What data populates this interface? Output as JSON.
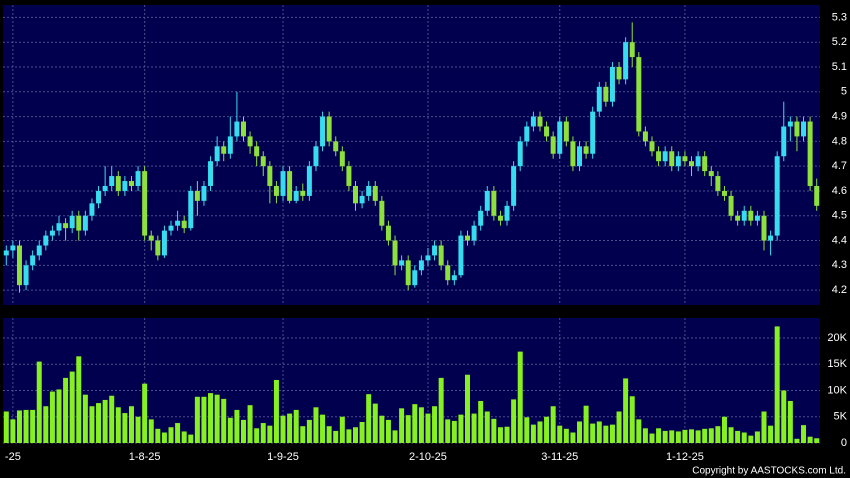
{
  "chart_data": [
    {
      "type": "candlestick",
      "up_color": "#38dcef",
      "down_color": "#8ee03c",
      "xlim": [
        -0.5,
        123.5
      ],
      "ylim": [
        4.14,
        5.35
      ],
      "yticks": [
        4.2,
        4.3,
        4.4,
        4.5,
        4.6,
        4.7,
        4.8,
        4.9,
        5,
        5.1,
        5.2,
        5.3
      ],
      "grid": true,
      "open": [
        4.34,
        4.36,
        4.38,
        4.22,
        4.3,
        4.34,
        4.38,
        4.42,
        4.44,
        4.47,
        4.45,
        4.5,
        4.44,
        4.5,
        4.55,
        4.6,
        4.62,
        4.66,
        4.6,
        4.64,
        4.62,
        4.68,
        4.42,
        4.4,
        4.34,
        4.44,
        4.46,
        4.48,
        4.45,
        4.6,
        4.56,
        4.62,
        4.72,
        4.78,
        4.75,
        4.82,
        4.88,
        4.82,
        4.78,
        4.74,
        4.7,
        4.62,
        4.58,
        4.68,
        4.56,
        4.6,
        4.58,
        4.7,
        4.78,
        4.9,
        4.8,
        4.76,
        4.7,
        4.62,
        4.55,
        4.58,
        4.62,
        4.56,
        4.46,
        4.4,
        4.3,
        4.32,
        4.22,
        4.28,
        4.32,
        4.34,
        4.38,
        4.3,
        4.24,
        4.26,
        4.42,
        4.4,
        4.46,
        4.52,
        4.6,
        4.5,
        4.48,
        4.54,
        4.7,
        4.8,
        4.86,
        4.9,
        4.86,
        4.82,
        4.75,
        4.88,
        4.8,
        4.7,
        4.78,
        4.75,
        4.92,
        5.02,
        4.96,
        5.1,
        5.05,
        5.2,
        5.14,
        4.84,
        4.8,
        4.76,
        4.72,
        4.76,
        4.7,
        4.74,
        4.72,
        4.7,
        4.74,
        4.68,
        4.66,
        4.6,
        4.58,
        4.5,
        4.48,
        4.52,
        4.48,
        4.5,
        4.4,
        4.42,
        4.74,
        4.86,
        4.88,
        4.82,
        4.88,
        4.62
      ],
      "high": [
        4.38,
        4.4,
        4.4,
        4.32,
        4.36,
        4.4,
        4.44,
        4.46,
        4.5,
        4.49,
        4.52,
        4.52,
        4.52,
        4.57,
        4.62,
        4.7,
        4.7,
        4.68,
        4.66,
        4.66,
        4.7,
        4.7,
        4.44,
        4.42,
        4.46,
        4.48,
        4.52,
        4.5,
        4.62,
        4.64,
        4.64,
        4.74,
        4.82,
        4.8,
        4.9,
        5.0,
        4.9,
        4.84,
        4.8,
        4.76,
        4.72,
        4.64,
        4.7,
        4.7,
        4.62,
        4.63,
        4.72,
        4.8,
        4.92,
        4.92,
        4.82,
        4.78,
        4.72,
        4.64,
        4.6,
        4.64,
        4.64,
        4.58,
        4.48,
        4.42,
        4.34,
        4.34,
        4.3,
        4.34,
        4.37,
        4.4,
        4.4,
        4.32,
        4.28,
        4.44,
        4.44,
        4.48,
        4.54,
        4.62,
        4.62,
        4.52,
        4.56,
        4.72,
        4.82,
        4.88,
        4.92,
        4.92,
        4.88,
        4.84,
        4.9,
        4.9,
        4.82,
        4.8,
        4.8,
        4.94,
        5.04,
        5.04,
        5.12,
        5.12,
        5.22,
        5.28,
        5.16,
        4.86,
        4.82,
        4.78,
        4.78,
        4.78,
        4.76,
        4.76,
        4.74,
        4.76,
        4.76,
        4.7,
        4.68,
        4.62,
        4.6,
        4.52,
        4.54,
        4.54,
        4.52,
        4.52,
        4.44,
        4.76,
        4.96,
        4.9,
        4.9,
        4.9,
        4.9,
        4.65
      ],
      "low": [
        4.3,
        4.33,
        4.19,
        4.2,
        4.28,
        4.32,
        4.36,
        4.4,
        4.42,
        4.4,
        4.43,
        4.4,
        4.42,
        4.48,
        4.53,
        4.58,
        4.6,
        4.58,
        4.58,
        4.6,
        4.6,
        4.4,
        4.36,
        4.32,
        4.33,
        4.42,
        4.44,
        4.43,
        4.44,
        4.5,
        4.54,
        4.6,
        4.7,
        4.72,
        4.73,
        4.8,
        4.8,
        4.75,
        4.7,
        4.66,
        4.55,
        4.55,
        4.56,
        4.55,
        4.55,
        4.56,
        4.56,
        4.68,
        4.76,
        4.78,
        4.74,
        4.68,
        4.6,
        4.52,
        4.53,
        4.56,
        4.54,
        4.44,
        4.38,
        4.26,
        4.28,
        4.2,
        4.21,
        4.26,
        4.3,
        4.32,
        4.28,
        4.22,
        4.22,
        4.25,
        4.38,
        4.38,
        4.44,
        4.5,
        4.48,
        4.46,
        4.46,
        4.52,
        4.68,
        4.78,
        4.84,
        4.84,
        4.8,
        4.73,
        4.73,
        4.78,
        4.68,
        4.68,
        4.73,
        4.73,
        4.9,
        4.94,
        4.94,
        5.03,
        5.03,
        5.1,
        4.82,
        4.78,
        4.74,
        4.7,
        4.7,
        4.68,
        4.68,
        4.7,
        4.66,
        4.68,
        4.66,
        4.62,
        4.58,
        4.56,
        4.48,
        4.46,
        4.46,
        4.46,
        4.46,
        4.36,
        4.34,
        4.4,
        4.72,
        4.8,
        4.76,
        4.8,
        4.6,
        4.52
      ],
      "close": [
        4.36,
        4.38,
        4.22,
        4.3,
        4.34,
        4.38,
        4.42,
        4.44,
        4.47,
        4.45,
        4.5,
        4.44,
        4.5,
        4.55,
        4.6,
        4.62,
        4.66,
        4.6,
        4.64,
        4.62,
        4.68,
        4.42,
        4.4,
        4.34,
        4.44,
        4.46,
        4.48,
        4.45,
        4.6,
        4.56,
        4.62,
        4.72,
        4.78,
        4.75,
        4.82,
        4.88,
        4.82,
        4.78,
        4.74,
        4.7,
        4.62,
        4.58,
        4.68,
        4.56,
        4.6,
        4.58,
        4.7,
        4.78,
        4.9,
        4.8,
        4.76,
        4.7,
        4.62,
        4.55,
        4.58,
        4.62,
        4.56,
        4.46,
        4.4,
        4.3,
        4.32,
        4.22,
        4.28,
        4.32,
        4.34,
        4.38,
        4.3,
        4.24,
        4.26,
        4.42,
        4.4,
        4.46,
        4.52,
        4.6,
        4.5,
        4.48,
        4.54,
        4.7,
        4.8,
        4.86,
        4.9,
        4.86,
        4.82,
        4.75,
        4.88,
        4.8,
        4.7,
        4.78,
        4.75,
        4.92,
        5.02,
        4.96,
        5.1,
        5.05,
        5.2,
        5.14,
        4.84,
        4.8,
        4.76,
        4.72,
        4.76,
        4.7,
        4.74,
        4.72,
        4.7,
        4.74,
        4.68,
        4.66,
        4.6,
        4.58,
        4.5,
        4.48,
        4.52,
        4.48,
        4.5,
        4.4,
        4.42,
        4.74,
        4.86,
        4.88,
        4.82,
        4.88,
        4.62,
        4.54
      ]
    },
    {
      "type": "bar",
      "color": "#86f020",
      "xlim": [
        -0.5,
        123.5
      ],
      "ylim": [
        0,
        23800
      ],
      "yticks": [
        0,
        {
          "value": 5000,
          "label": "5K"
        },
        {
          "value": 10000,
          "label": "10K"
        },
        {
          "value": 15000,
          "label": "15K"
        },
        {
          "value": 20000,
          "label": "20K"
        }
      ],
      "xticks": [
        {
          "value": 1,
          "label": "-25"
        },
        {
          "value": 21,
          "label": "1-8-25"
        },
        {
          "value": 42,
          "label": "1-9-25"
        },
        {
          "value": 64,
          "label": "2-10-25"
        },
        {
          "value": 84,
          "label": "3-11-25"
        },
        {
          "value": 103,
          "label": "1-12-25"
        }
      ],
      "grid": true,
      "values": [
        6000,
        4500,
        6200,
        6300,
        6300,
        15500,
        7000,
        9800,
        10200,
        12400,
        13600,
        16500,
        9200,
        7000,
        7600,
        8200,
        9000,
        6800,
        5700,
        7000,
        5000,
        11300,
        4500,
        2700,
        2000,
        3000,
        3800,
        2200,
        1600,
        8800,
        8800,
        9500,
        9200,
        8400,
        4800,
        6300,
        4400,
        7200,
        2800,
        3800,
        3300,
        12000,
        5200,
        5600,
        6300,
        3200,
        4400,
        6800,
        5400,
        3200,
        2300,
        5000,
        2600,
        3000,
        4000,
        9300,
        7500,
        5200,
        4400,
        2400,
        6600,
        5300,
        7400,
        6800,
        5600,
        7000,
        12400,
        4500,
        4200,
        5400,
        13000,
        5600,
        8000,
        6000,
        4600,
        3000,
        3100,
        8300,
        17400,
        4900,
        3500,
        4100,
        5000,
        7000,
        3300,
        2700,
        2000,
        4100,
        7100,
        3700,
        4100,
        3300,
        3500,
        6000,
        12300,
        8900,
        4500,
        2800,
        1800,
        2800,
        2300,
        2400,
        2200,
        2500,
        2600,
        2400,
        2700,
        2800,
        3200,
        5000,
        3000,
        2300,
        2000,
        1400,
        2200,
        6000,
        3300,
        22200,
        10000,
        8000,
        800,
        3400,
        1200,
        900
      ],
      "footer": "Copyright by AASTOCKS.com Ltd."
    }
  ]
}
